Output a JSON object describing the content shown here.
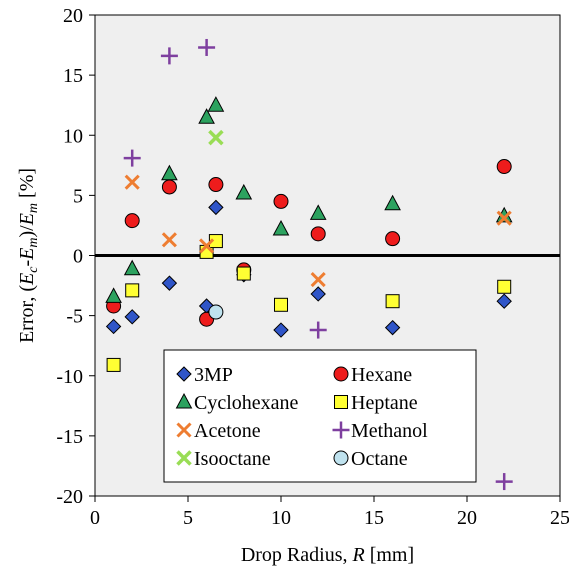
{
  "chart_data": {
    "type": "scatter",
    "title": "",
    "xlabel_parts": [
      {
        "text": "Drop Radius, ",
        "italic": false,
        "sub": false
      },
      {
        "text": "R",
        "italic": true,
        "sub": false
      },
      {
        "text": " [mm]",
        "italic": false,
        "sub": false
      }
    ],
    "ylabel_parts": [
      {
        "text": "Error, (",
        "italic": false,
        "sub": false
      },
      {
        "text": "E",
        "italic": true,
        "sub": false
      },
      {
        "text": "c",
        "italic": true,
        "sub": true
      },
      {
        "text": "-",
        "italic": false,
        "sub": false
      },
      {
        "text": "E",
        "italic": true,
        "sub": false
      },
      {
        "text": "m",
        "italic": true,
        "sub": true
      },
      {
        "text": ")/",
        "italic": false,
        "sub": false
      },
      {
        "text": "E",
        "italic": true,
        "sub": false
      },
      {
        "text": "m",
        "italic": true,
        "sub": true
      },
      {
        "text": "  [%]",
        "italic": false,
        "sub": false
      }
    ],
    "xlim": [
      0,
      25
    ],
    "ylim": [
      -20,
      20
    ],
    "xticks": [
      0,
      5,
      10,
      15,
      20,
      25
    ],
    "yticks": [
      -20,
      -15,
      -10,
      -5,
      0,
      5,
      10,
      15,
      20
    ],
    "grid": false,
    "zero_line": true,
    "legend_position": "bottom-center",
    "background_color": "#efefef",
    "series": [
      {
        "name": "3MP",
        "marker": "diamond",
        "color": "#2f55c8",
        "points": [
          [
            1,
            -5.9
          ],
          [
            2,
            -5.1
          ],
          [
            4,
            -2.3
          ],
          [
            6,
            -4.2
          ],
          [
            6.5,
            4.0
          ],
          [
            8,
            -1.6
          ],
          [
            10,
            -6.2
          ],
          [
            12,
            -3.2
          ],
          [
            16,
            -6.0
          ],
          [
            22,
            -3.8
          ]
        ]
      },
      {
        "name": "Hexane",
        "marker": "circle",
        "color": "#ee1c1c",
        "points": [
          [
            1,
            -4.2
          ],
          [
            2,
            2.9
          ],
          [
            4,
            5.7
          ],
          [
            6,
            -5.3
          ],
          [
            6.5,
            5.9
          ],
          [
            8,
            -1.2
          ],
          [
            10,
            4.5
          ],
          [
            12,
            1.8
          ],
          [
            16,
            1.4
          ],
          [
            22,
            7.4
          ]
        ]
      },
      {
        "name": "Cyclohexane",
        "marker": "triangle",
        "color": "#2ca25f",
        "points": [
          [
            1,
            -3.4
          ],
          [
            2,
            -1.1
          ],
          [
            4,
            6.8
          ],
          [
            6,
            11.5
          ],
          [
            6.5,
            12.5
          ],
          [
            8,
            5.2
          ],
          [
            10,
            2.2
          ],
          [
            12,
            3.5
          ],
          [
            16,
            4.3
          ],
          [
            22,
            3.3
          ]
        ]
      },
      {
        "name": "Heptane",
        "marker": "square",
        "color": "#ffff33",
        "points": [
          [
            1,
            -9.1
          ],
          [
            2,
            -2.9
          ],
          [
            6,
            0.3
          ],
          [
            6.5,
            1.2
          ],
          [
            8,
            -1.5
          ],
          [
            10,
            -4.1
          ],
          [
            16,
            -3.8
          ],
          [
            22,
            -2.6
          ]
        ]
      },
      {
        "name": "Acetone",
        "marker": "x-thick",
        "color": "#ee7d31",
        "points": [
          [
            2,
            6.1
          ],
          [
            4,
            1.3
          ],
          [
            6,
            0.8
          ],
          [
            12,
            -2.0
          ],
          [
            22,
            3.1
          ]
        ]
      },
      {
        "name": "Methanol",
        "marker": "plus",
        "color": "#7e3f9f",
        "points": [
          [
            2,
            8.1
          ],
          [
            4,
            16.6
          ],
          [
            6,
            17.3
          ],
          [
            12,
            -6.2
          ],
          [
            22,
            -18.8
          ]
        ]
      },
      {
        "name": "Isooctane",
        "marker": "x-light",
        "color": "#99dd55",
        "points": [
          [
            6.5,
            9.8
          ]
        ]
      },
      {
        "name": "Octane",
        "marker": "circle-light",
        "color": "#bfe2ee",
        "points": [
          [
            6.5,
            -4.7
          ]
        ]
      }
    ]
  }
}
